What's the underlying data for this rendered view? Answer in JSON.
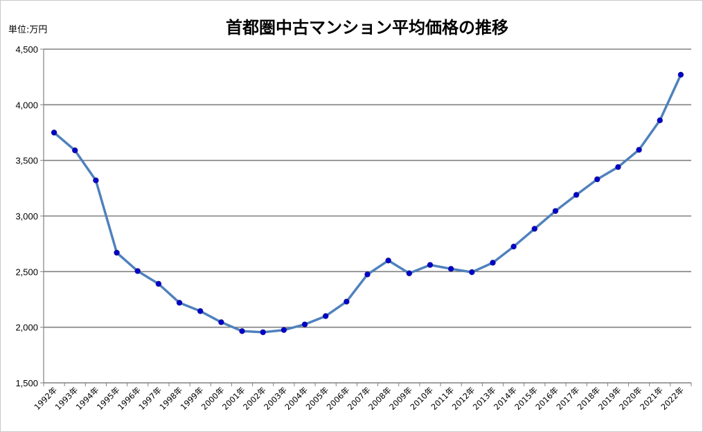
{
  "chart_data": {
    "type": "line",
    "title": "首都圏中古マンション平均価格の推移",
    "unit_label": "単位:万円",
    "ylim": [
      1500,
      4500
    ],
    "yticks": [
      1500,
      2000,
      2500,
      3000,
      3500,
      4000,
      4500
    ],
    "ytick_labels": [
      "1,500",
      "2,000",
      "2,500",
      "3,000",
      "3,500",
      "4,000",
      "4,500"
    ],
    "grid": true,
    "legend": "none",
    "categories": [
      "1992年",
      "1993年",
      "1994年",
      "1995年",
      "1996年",
      "1997年",
      "1998年",
      "1999年",
      "2000年",
      "2001年",
      "2002年",
      "2003年",
      "2004年",
      "2005年",
      "2006年",
      "2007年",
      "2008年",
      "2009年",
      "2010年",
      "2011年",
      "2012年",
      "2013年",
      "2014年",
      "2015年",
      "2016年",
      "2017年",
      "2018年",
      "2019年",
      "2020年",
      "2021年",
      "2022年"
    ],
    "series": [
      {
        "values": [
          3750,
          3590,
          3320,
          2670,
          2505,
          2390,
          2220,
          2145,
          2045,
          1965,
          1955,
          1975,
          2025,
          2100,
          2230,
          2475,
          2600,
          2485,
          2560,
          2525,
          2495,
          2580,
          2725,
          2885,
          3045,
          3190,
          3330,
          3440,
          3595,
          3860,
          4270
        ],
        "line_color": "#4f81bd",
        "marker_color": "#0000cc"
      }
    ]
  }
}
